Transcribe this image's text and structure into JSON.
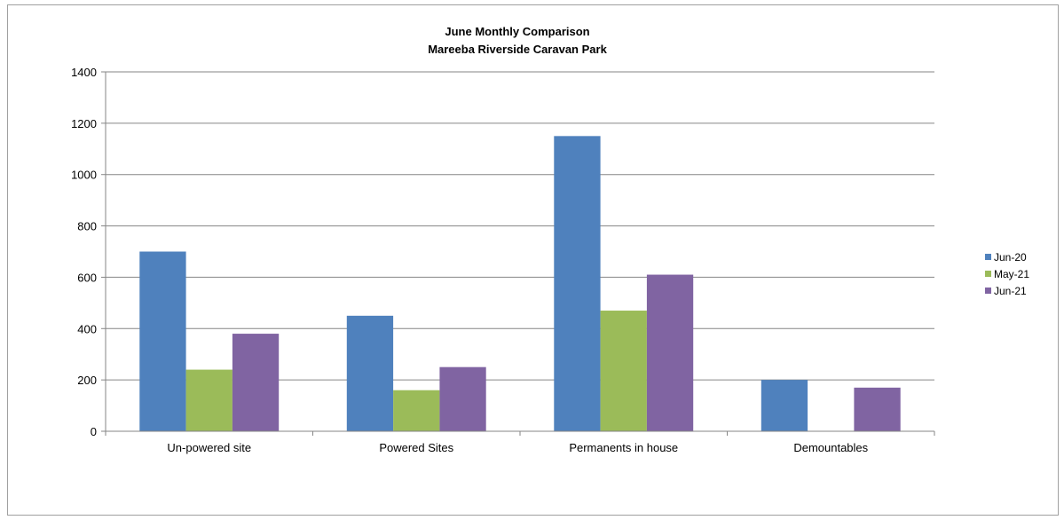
{
  "chart_data": {
    "type": "bar",
    "title": "June Monthly Comparison",
    "subtitle": "Mareeba Riverside Caravan Park",
    "categories": [
      "Un-powered site",
      "Powered Sites",
      "Permanents in house",
      "Demountables"
    ],
    "series": [
      {
        "name": "Jun-20",
        "color": "#4f81bd",
        "values": [
          700,
          450,
          1150,
          200
        ]
      },
      {
        "name": "May-21",
        "color": "#9bbb59",
        "values": [
          240,
          160,
          470,
          null
        ]
      },
      {
        "name": "Jun-21",
        "color": "#8064a2",
        "values": [
          380,
          250,
          610,
          170
        ]
      }
    ],
    "yticks": [
      0,
      200,
      400,
      600,
      800,
      1000,
      1200,
      1400
    ],
    "ylim": [
      0,
      1400
    ],
    "grid": true,
    "legend": "right"
  }
}
